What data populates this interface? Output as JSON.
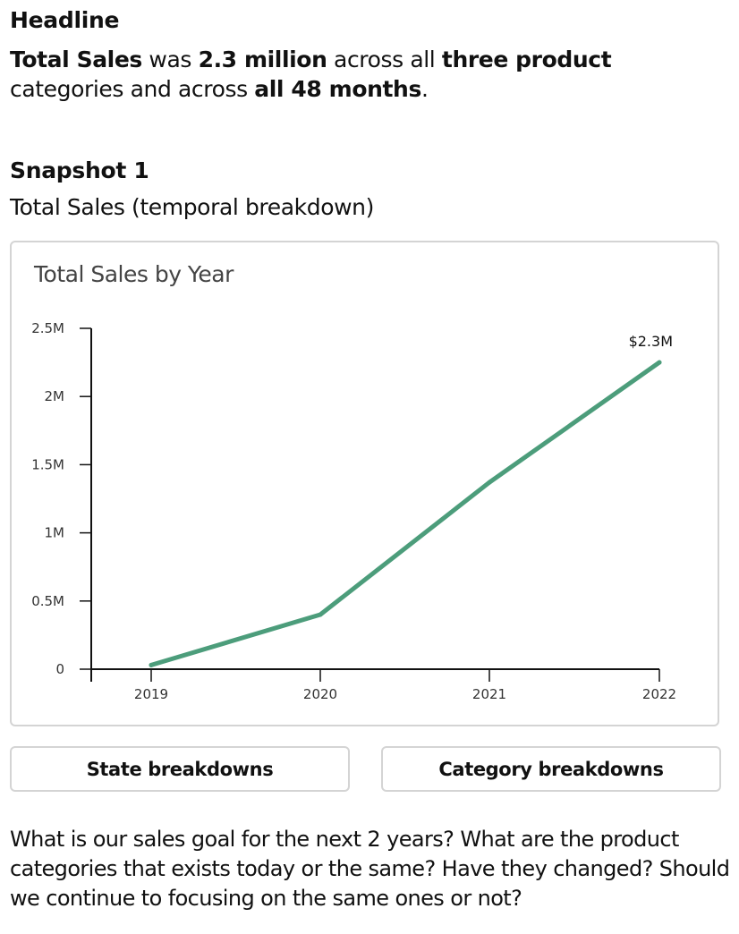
{
  "headline": {
    "title": "Headline",
    "parts": [
      "Total Sales",
      " was ",
      "2.3 million",
      " across all ",
      "three product",
      " categories and across ",
      "all 48 months",
      "."
    ]
  },
  "snapshot": {
    "title": "Snapshot 1",
    "subtitle": "Total Sales (temporal breakdown)"
  },
  "chart_data": {
    "type": "line",
    "title": "Total Sales by Year",
    "x": [
      "2019",
      "2020",
      "2021",
      "2022"
    ],
    "series": [
      {
        "name": "Total Sales",
        "values": [
          30000,
          400000,
          1370000,
          2250000
        ]
      }
    ],
    "yticks": [
      0,
      500000,
      1000000,
      1500000,
      2000000,
      2500000
    ],
    "ytick_labels": [
      "0",
      "0.5M",
      "1M",
      "1.5M",
      "2M",
      "2.5M"
    ],
    "ylim": [
      0,
      2500000
    ],
    "xlabel": "",
    "ylabel": "",
    "annotation": {
      "text": "$2.3M",
      "x": "2022"
    },
    "line_color": "#4c9d7b",
    "grid": false
  },
  "buttons": {
    "state": "State breakdowns",
    "category": "Category breakdowns"
  },
  "question": "What is our sales goal for the next 2 years? What are the product categories that exists today or the same? Have they changed? Should we continue to focusing on the same ones or not?"
}
